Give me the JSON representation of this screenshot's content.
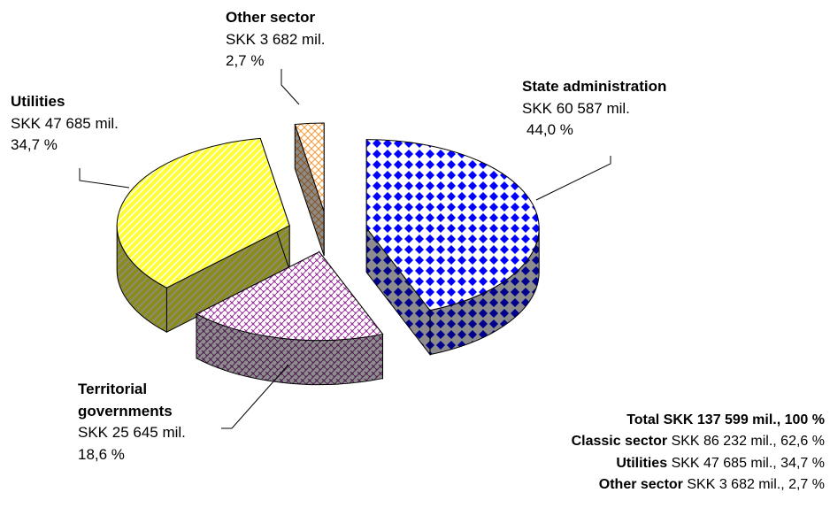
{
  "chart_data": {
    "type": "pie",
    "categories": [
      "State administration",
      "Territorial governments",
      "Utilities",
      "Other sector"
    ],
    "values": [
      44.0,
      18.6,
      34.7,
      2.7
    ],
    "value_labels": [
      "44,0 %",
      "18,6 %",
      "34,7 %",
      "2,7 %"
    ],
    "amount_labels": [
      "SKK 60 587 mil.",
      "SKK 25 645 mil.",
      "SKK 47 685 mil.",
      "SKK 3 682 mil."
    ],
    "colors": [
      "#0000ff",
      "#993399",
      "#ffff33",
      "#ff9933"
    ],
    "patterns": [
      "diamond",
      "weave",
      "stripes",
      "crosshatch"
    ],
    "exploded": true,
    "summary": [
      {
        "label": "Total SKK 137 599 mil., 100 %"
      },
      {
        "label": "Classic sector",
        "text": "SKK 86 232 mil., 62,6 %"
      },
      {
        "label": "Utilities",
        "text": "SKK 47 685 mil., 34,7 %"
      },
      {
        "label": "Other sector",
        "text": "SKK 3 682 mil., 2,7 %"
      }
    ]
  }
}
